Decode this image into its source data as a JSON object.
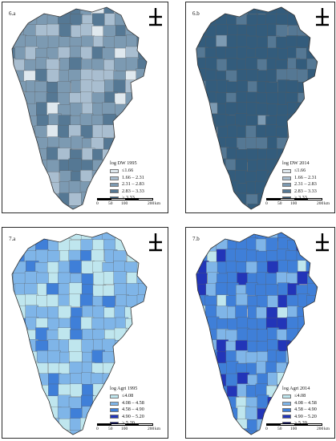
{
  "panels": [
    {
      "id": "6a",
      "label": "6.a",
      "legend_title": "log DW 1995",
      "classes": [
        {
          "label": "≤1.66",
          "color": "#dfe8ee"
        },
        {
          "label": "1.66 – 2.31",
          "color": "#a9bed0"
        },
        {
          "label": "2.31 – 2.83",
          "color": "#7c9ab2"
        },
        {
          "label": "2.83 – 3.33",
          "color": "#557894"
        },
        {
          "label": "> 3.33",
          "color": "#335c7c"
        }
      ],
      "dominant_class": 2,
      "scale_ticks": [
        "0",
        "50",
        "100",
        "200"
      ],
      "scale_unit": "km"
    },
    {
      "id": "6b",
      "label": "6.b",
      "legend_title": "log DW 2014",
      "classes": [
        {
          "label": "≤1.66",
          "color": "#dfe8ee"
        },
        {
          "label": "1.66 – 2.31",
          "color": "#a9bed0"
        },
        {
          "label": "2.31 – 2.83",
          "color": "#7c9ab2"
        },
        {
          "label": "2.83 – 3.33",
          "color": "#557894"
        },
        {
          "label": "> 3.33",
          "color": "#335c7c"
        }
      ],
      "dominant_class": 4,
      "scale_ticks": [
        "0",
        "50",
        "100",
        "200"
      ],
      "scale_unit": "km"
    },
    {
      "id": "7a",
      "label": "7.a",
      "legend_title": "log Agri 1995",
      "classes": [
        {
          "label": "≤4.08",
          "color": "#bfe6ee"
        },
        {
          "label": "4.08 – 4.58",
          "color": "#7fb5e8"
        },
        {
          "label": "4.58 – 4.90",
          "color": "#3f7fd8"
        },
        {
          "label": "4.90 – 5.20",
          "color": "#2235b8"
        },
        {
          "label": "> 5.20",
          "color": "#0c0f72"
        }
      ],
      "dominant_class": 1,
      "scale_ticks": [
        "0",
        "50",
        "100",
        "200"
      ],
      "scale_unit": "km"
    },
    {
      "id": "7b",
      "label": "7.b",
      "legend_title": "log Agri 2014",
      "classes": [
        {
          "label": "≤4.08",
          "color": "#bfe6ee"
        },
        {
          "label": "4.08 – 4.58",
          "color": "#7fb5e8"
        },
        {
          "label": "4.58 – 4.90",
          "color": "#3f7fd8"
        },
        {
          "label": "4.90 – 5.20",
          "color": "#2235b8"
        },
        {
          "label": "> 5.20",
          "color": "#0c0f72"
        }
      ],
      "dominant_class": 2,
      "scale_ticks": [
        "0",
        "50",
        "100",
        "200"
      ],
      "scale_unit": "km"
    }
  ],
  "north_arrow_icon": "north-arrow-icon",
  "border_color": "#2b2b2b"
}
